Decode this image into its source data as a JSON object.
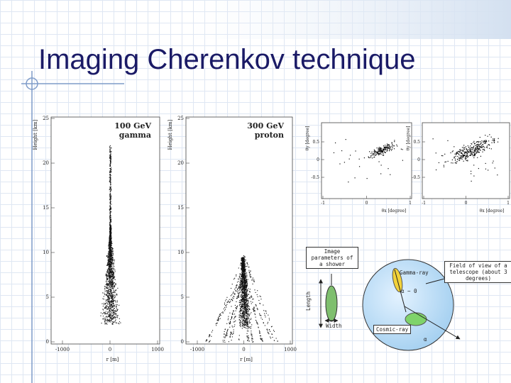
{
  "title": "Imaging Cherenkov technique",
  "shower_plots": [
    {
      "label_lines": [
        "100 GeV",
        "gamma"
      ],
      "y_label": "Height [km]",
      "x_label": "r [m]",
      "yticks": [
        0,
        5,
        10,
        15,
        20,
        25
      ],
      "xticks": [
        -1000,
        0,
        1000
      ]
    },
    {
      "label_lines": [
        "300 GeV",
        "proton"
      ],
      "y_label": "Height [km]",
      "x_label": "r [m]",
      "yticks": [
        0,
        5,
        10,
        15,
        20,
        25
      ],
      "xticks": [
        -1000,
        0,
        1000
      ]
    }
  ],
  "camera_plots": [
    {
      "y_label": "θy [degree]",
      "x_label": "θx [degree]",
      "yticks": [
        0.5,
        0,
        -0.5
      ],
      "xticks": [
        -1,
        0,
        1
      ]
    },
    {
      "y_label": "θy [degree]",
      "x_label": "θx [degree]",
      "yticks": [
        0.5,
        0,
        -0.5
      ],
      "xticks": [
        -1,
        0,
        1
      ]
    }
  ],
  "diagram": {
    "parameters_box": "Image parameters of a shower",
    "length": "Length",
    "width": "Width",
    "field_of_view": "Field of view of a telescope (about 3 degrees)",
    "gamma_ray": "Gamma-ray",
    "alpha_zero": "α ~ 0",
    "cosmic_ray": "Cosmic-ray",
    "alpha": "α"
  }
}
